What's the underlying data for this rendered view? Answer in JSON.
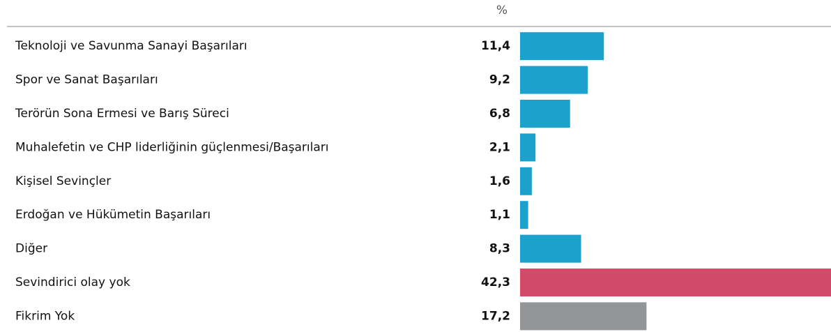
{
  "chart_data": {
    "type": "hbar",
    "unit_header": "%",
    "categories": [
      "Teknoloji ve Savunma Sanayi Başarıları",
      "Spor ve Sanat Başarıları",
      "Terörün Sona Ermesi ve Barış Süreci",
      "Muhalefetin ve CHP liderliğinin güçlenmesi/Başarıları",
      "Kişisel Sevinçler",
      "Erdoğan ve Hükümetin Başarıları",
      "Diğer",
      "Sevindirici olay yok",
      "Fikrim Yok"
    ],
    "values": [
      11.4,
      9.2,
      6.8,
      2.1,
      1.6,
      1.1,
      8.3,
      42.3,
      17.2
    ],
    "value_labels": [
      "11,4",
      "9,2",
      "6,8",
      "2,1",
      "1,6",
      "1,1",
      "8,3",
      "42,3",
      "17,2"
    ],
    "colors": [
      "#1ba1cc",
      "#1ba1cc",
      "#1ba1cc",
      "#1ba1cc",
      "#1ba1cc",
      "#1ba1cc",
      "#1ba1cc",
      "#d24b6a",
      "#939598"
    ]
  }
}
